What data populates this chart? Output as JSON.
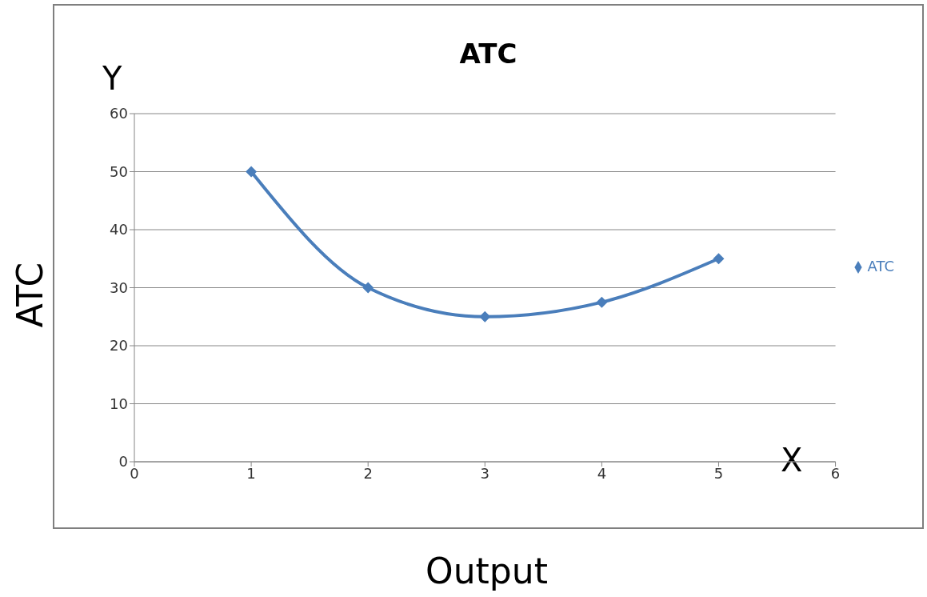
{
  "chart_data": {
    "type": "line",
    "title": "ATC",
    "xlabel": "Output",
    "ylabel": "ATC",
    "annotations": [
      "Y",
      "X"
    ],
    "x": [
      1,
      2,
      3,
      4,
      5
    ],
    "series": [
      {
        "name": "ATC",
        "color": "#4a7ebb",
        "values": [
          50,
          30,
          25,
          27.5,
          35
        ]
      }
    ],
    "xlim": [
      0,
      6
    ],
    "xticks": [
      0,
      1,
      2,
      3,
      4,
      5,
      6
    ],
    "ylim": [
      0,
      60
    ],
    "yticks": [
      0,
      10,
      20,
      30,
      40,
      50,
      60
    ],
    "grid": "y",
    "legend": "right",
    "marker": "diamond",
    "line_style": "solid"
  }
}
